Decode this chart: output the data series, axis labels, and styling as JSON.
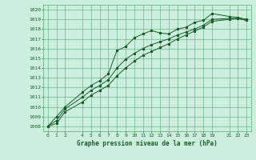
{
  "title": "Graphe pression niveau de la mer (hPa)",
  "bg_color": "#cceedd",
  "grid_color": "#55aa77",
  "line_color": "#1a5c2a",
  "xlim": [
    -0.5,
    23.5
  ],
  "ylim": [
    1007.5,
    1020.5
  ],
  "yticks": [
    1008,
    1009,
    1010,
    1011,
    1012,
    1013,
    1014,
    1015,
    1016,
    1017,
    1018,
    1019,
    1020
  ],
  "xticks": [
    0,
    1,
    2,
    4,
    5,
    6,
    7,
    8,
    9,
    10,
    11,
    12,
    13,
    14,
    15,
    16,
    17,
    18,
    19,
    21,
    22,
    23
  ],
  "series1_x": [
    0,
    1,
    2,
    4,
    5,
    6,
    7,
    8,
    9,
    10,
    11,
    12,
    13,
    14,
    15,
    16,
    17,
    18,
    19,
    21,
    22,
    23
  ],
  "series1_y": [
    1008.0,
    1009.0,
    1010.0,
    1011.5,
    1012.2,
    1012.7,
    1013.4,
    1015.8,
    1016.2,
    1017.1,
    1017.5,
    1017.85,
    1017.6,
    1017.5,
    1018.0,
    1018.2,
    1018.7,
    1018.9,
    1019.6,
    1019.3,
    1019.2,
    1019.0
  ],
  "series2_x": [
    0,
    1,
    2,
    4,
    5,
    6,
    7,
    8,
    9,
    10,
    11,
    12,
    13,
    14,
    15,
    16,
    17,
    18,
    19,
    21,
    22,
    23
  ],
  "series2_y": [
    1008.0,
    1008.6,
    1009.8,
    1011.0,
    1011.7,
    1012.2,
    1012.8,
    1014.0,
    1014.9,
    1015.5,
    1016.0,
    1016.4,
    1016.7,
    1017.0,
    1017.4,
    1017.7,
    1018.0,
    1018.4,
    1019.0,
    1019.1,
    1019.1,
    1018.9
  ],
  "series3_x": [
    0,
    1,
    2,
    4,
    5,
    6,
    7,
    8,
    9,
    10,
    11,
    12,
    13,
    14,
    15,
    16,
    17,
    18,
    19,
    21,
    22,
    23
  ],
  "series3_y": [
    1008.0,
    1008.3,
    1009.5,
    1010.5,
    1011.2,
    1011.7,
    1012.2,
    1013.2,
    1014.0,
    1014.7,
    1015.3,
    1015.7,
    1016.1,
    1016.5,
    1017.0,
    1017.4,
    1017.8,
    1018.2,
    1018.8,
    1019.0,
    1019.1,
    1018.9
  ],
  "title_fontsize": 5.5,
  "tick_fontsize": 4.5,
  "marker_size": 2.0,
  "line_width": 0.7
}
